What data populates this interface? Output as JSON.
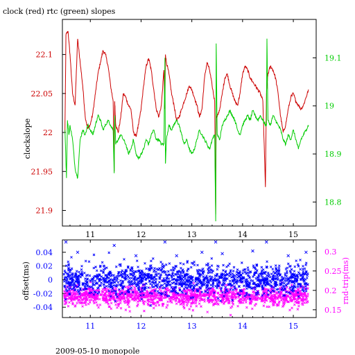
{
  "chart_data": [
    {
      "type": "line",
      "title": "clock (red) rtc (green) slopes",
      "ylabel": "clockslope",
      "y2label": "",
      "x_ticks": [
        "11",
        "12",
        "13",
        "14",
        "15"
      ],
      "xlim": [
        10.45,
        15.45
      ],
      "ylim": [
        21.88,
        22.145
      ],
      "y_ticks": [
        "21.9",
        "21.95",
        "22",
        "22.05",
        "22.1"
      ],
      "y2lim": [
        18.75,
        19.18
      ],
      "y2_ticks": [
        "18.8",
        "18.9",
        "19",
        "19.1"
      ],
      "colors": {
        "left_axis": "#cc0000",
        "right_axis": "#00cc00",
        "frame": "#000000"
      },
      "series": [
        {
          "name": "clock",
          "color": "#cc0000",
          "axis": "left",
          "x": [
            10.5,
            10.52,
            10.56,
            10.6,
            10.65,
            10.7,
            10.75,
            10.8,
            10.85,
            10.9,
            10.95,
            11.0,
            11.05,
            11.1,
            11.15,
            11.2,
            11.25,
            11.3,
            11.35,
            11.4,
            11.45,
            11.47,
            11.48,
            11.5,
            11.55,
            11.6,
            11.65,
            11.7,
            11.75,
            11.8,
            11.85,
            11.9,
            11.95,
            12.0,
            12.05,
            12.1,
            12.15,
            12.2,
            12.25,
            12.3,
            12.35,
            12.4,
            12.45,
            12.47,
            12.48,
            12.5,
            12.55,
            12.6,
            12.65,
            12.7,
            12.75,
            12.8,
            12.85,
            12.9,
            12.95,
            13.0,
            13.05,
            13.1,
            13.15,
            13.2,
            13.25,
            13.3,
            13.35,
            13.4,
            13.45,
            13.47,
            13.48,
            13.5,
            13.55,
            13.6,
            13.65,
            13.7,
            13.75,
            13.8,
            13.85,
            13.9,
            13.95,
            14.0,
            14.05,
            14.1,
            14.15,
            14.2,
            14.25,
            14.3,
            14.35,
            14.4,
            14.45,
            14.47,
            14.48,
            14.5,
            14.55,
            14.6,
            14.65,
            14.7,
            14.75,
            14.8,
            14.85,
            14.9,
            14.95,
            15.0,
            15.05,
            15.1,
            15.15,
            15.2,
            15.25,
            15.3
          ],
          "y": [
            22.0,
            22.125,
            22.13,
            22.1,
            22.05,
            22.035,
            22.12,
            22.09,
            22.06,
            22.02,
            22.005,
            22.01,
            22.025,
            22.05,
            22.075,
            22.09,
            22.105,
            22.1,
            22.085,
            22.06,
            22.04,
            21.95,
            22.04,
            22.01,
            22.0,
            22.02,
            22.05,
            22.045,
            22.035,
            22.03,
            22.0,
            21.995,
            22.01,
            22.03,
            22.06,
            22.085,
            22.095,
            22.08,
            22.055,
            22.03,
            22.02,
            22.035,
            22.08,
            22.03,
            22.1,
            22.09,
            22.075,
            22.05,
            22.035,
            22.015,
            22.02,
            22.03,
            22.04,
            22.05,
            22.06,
            22.055,
            22.045,
            22.035,
            22.02,
            22.03,
            22.07,
            22.09,
            22.08,
            22.06,
            22.04,
            21.895,
            22.02,
            22.02,
            22.03,
            22.05,
            22.07,
            22.075,
            22.06,
            22.05,
            22.04,
            22.035,
            22.05,
            22.075,
            22.085,
            22.08,
            22.07,
            22.065,
            22.06,
            22.055,
            22.05,
            22.04,
            21.93,
            22.05,
            22.06,
            22.075,
            22.085,
            22.08,
            22.07,
            22.05,
            22.02,
            22.0,
            22.01,
            22.03,
            22.045,
            22.05,
            22.04,
            22.035,
            22.03,
            22.035,
            22.045,
            22.055
          ]
        },
        {
          "name": "rtc",
          "color": "#00cc00",
          "axis": "right",
          "x": [
            10.5,
            10.53,
            10.55,
            10.58,
            10.6,
            10.65,
            10.7,
            10.75,
            10.8,
            10.85,
            10.9,
            10.95,
            11.0,
            11.05,
            11.1,
            11.15,
            11.2,
            11.25,
            11.3,
            11.35,
            11.4,
            11.45,
            11.47,
            11.48,
            11.5,
            11.55,
            11.6,
            11.65,
            11.7,
            11.75,
            11.8,
            11.85,
            11.9,
            11.95,
            12.0,
            12.05,
            12.1,
            12.15,
            12.2,
            12.25,
            12.3,
            12.35,
            12.4,
            12.45,
            12.47,
            12.48,
            12.5,
            12.55,
            12.6,
            12.65,
            12.7,
            12.75,
            12.8,
            12.85,
            12.9,
            12.95,
            13.0,
            13.05,
            13.1,
            13.15,
            13.2,
            13.25,
            13.3,
            13.35,
            13.4,
            13.45,
            13.47,
            13.48,
            13.5,
            13.55,
            13.6,
            13.65,
            13.7,
            13.75,
            13.8,
            13.85,
            13.9,
            13.95,
            14.0,
            14.05,
            14.1,
            14.15,
            14.2,
            14.25,
            14.3,
            14.35,
            14.4,
            14.45,
            14.47,
            14.48,
            14.5,
            14.55,
            14.6,
            14.65,
            14.7,
            14.75,
            14.8,
            14.85,
            14.9,
            14.95,
            15.0,
            15.05,
            15.1,
            15.15,
            15.2,
            15.25,
            15.3
          ],
          "y": [
            18.95,
            18.85,
            18.97,
            18.94,
            18.96,
            18.93,
            18.87,
            18.85,
            18.93,
            18.95,
            18.94,
            18.96,
            18.95,
            18.94,
            18.96,
            18.98,
            18.97,
            18.95,
            18.96,
            18.97,
            18.96,
            18.95,
            18.86,
            18.98,
            18.92,
            18.93,
            18.94,
            18.93,
            18.92,
            18.9,
            18.91,
            18.93,
            18.9,
            18.89,
            18.9,
            18.91,
            18.93,
            18.92,
            18.94,
            18.95,
            18.93,
            18.93,
            18.92,
            18.92,
            19.1,
            18.88,
            18.93,
            18.96,
            18.95,
            18.96,
            18.97,
            18.96,
            18.94,
            18.92,
            18.93,
            18.91,
            18.9,
            18.91,
            18.93,
            18.95,
            18.94,
            18.93,
            18.92,
            18.91,
            18.93,
            18.94,
            18.76,
            19.13,
            18.94,
            18.93,
            18.96,
            18.97,
            18.98,
            18.99,
            18.98,
            18.97,
            18.95,
            18.94,
            18.96,
            18.97,
            18.98,
            18.97,
            18.99,
            18.98,
            18.97,
            18.98,
            18.97,
            18.96,
            18.96,
            19.14,
            18.97,
            18.96,
            18.98,
            18.97,
            18.96,
            18.95,
            18.93,
            18.92,
            18.94,
            18.93,
            18.95,
            18.93,
            18.91,
            18.93,
            18.94,
            18.95,
            18.96
          ]
        }
      ]
    },
    {
      "type": "scatter",
      "title": "",
      "ylabel": "offset(ms)",
      "y2label": "rnd-trip(ms)",
      "x_ticks": [
        "11",
        "12",
        "13",
        "14",
        "15"
      ],
      "xlim": [
        10.45,
        15.45
      ],
      "ylim": [
        -0.055,
        0.058
      ],
      "y_ticks": [
        "-0.04",
        "-0.02",
        "0",
        "0.02",
        "0.04"
      ],
      "y2lim": [
        0.13,
        0.33
      ],
      "y2_ticks": [
        "0.15",
        "0.2",
        "0.25",
        "0.3"
      ],
      "colors": {
        "left_axis": "#0000ff",
        "right_axis": "#ff00ff",
        "frame": "#000000"
      },
      "series": [
        {
          "name": "offset",
          "color": "#0000ff",
          "axis": "left",
          "marker": "x",
          "x_range": [
            10.48,
            15.3
          ],
          "y_center": 0.0,
          "y_spread": 0.02,
          "outliers": [
            [
              10.52,
              0.055
            ],
            [
              11.47,
              0.05
            ],
            [
              12.47,
              0.055
            ],
            [
              13.47,
              0.06
            ],
            [
              14.47,
              0.055
            ],
            [
              10.75,
              0.04
            ],
            [
              11.9,
              0.035
            ],
            [
              12.7,
              0.035
            ],
            [
              13.2,
              0.04
            ],
            [
              13.6,
              0.038
            ],
            [
              14.2,
              0.042
            ],
            [
              14.9,
              0.035
            ],
            [
              15.25,
              0.04
            ]
          ]
        },
        {
          "name": "rnd-trip",
          "color": "#ff00ff",
          "axis": "right",
          "marker": "x",
          "x_range": [
            10.48,
            15.3
          ],
          "y_center": 0.185,
          "y_spread": 0.022,
          "outliers": []
        }
      ]
    }
  ],
  "footer": {
    "caption": "2009-05-10 monopole"
  }
}
